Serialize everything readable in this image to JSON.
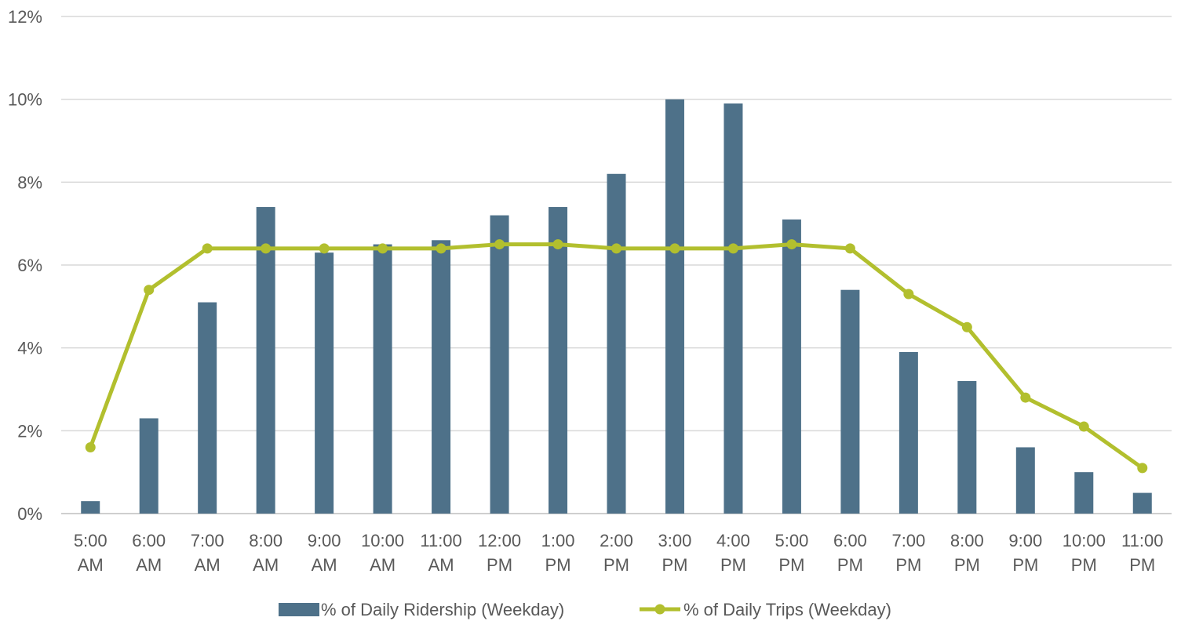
{
  "chart_data": {
    "type": "bar",
    "categories": [
      [
        "5:00",
        "AM"
      ],
      [
        "6:00",
        "AM"
      ],
      [
        "7:00",
        "AM"
      ],
      [
        "8:00",
        "AM"
      ],
      [
        "9:00",
        "AM"
      ],
      [
        "10:00",
        "AM"
      ],
      [
        "11:00",
        "AM"
      ],
      [
        "12:00",
        "PM"
      ],
      [
        "1:00",
        "PM"
      ],
      [
        "2:00",
        "PM"
      ],
      [
        "3:00",
        "PM"
      ],
      [
        "4:00",
        "PM"
      ],
      [
        "5:00",
        "PM"
      ],
      [
        "6:00",
        "PM"
      ],
      [
        "7:00",
        "PM"
      ],
      [
        "8:00",
        "PM"
      ],
      [
        "9:00",
        "PM"
      ],
      [
        "10:00",
        "PM"
      ],
      [
        "11:00",
        "PM"
      ]
    ],
    "series": [
      {
        "name": "% of Daily Ridership (Weekday)",
        "type": "bar",
        "color": "#4e7189",
        "values": [
          0.3,
          2.3,
          5.1,
          7.4,
          6.3,
          6.5,
          6.6,
          7.2,
          7.4,
          8.2,
          10.0,
          9.9,
          7.1,
          5.4,
          3.9,
          3.2,
          1.6,
          1.0,
          0.5
        ]
      },
      {
        "name": "% of Daily Trips (Weekday)",
        "type": "line",
        "color": "#b2bf2e",
        "values": [
          1.6,
          5.4,
          6.4,
          6.4,
          6.4,
          6.4,
          6.4,
          6.5,
          6.5,
          6.4,
          6.4,
          6.4,
          6.5,
          6.4,
          5.3,
          4.5,
          2.8,
          2.1,
          1.1
        ]
      }
    ],
    "y_ticks": [
      "0%",
      "2%",
      "4%",
      "6%",
      "8%",
      "10%",
      "12%"
    ],
    "ylim": [
      0,
      12
    ],
    "grid": true,
    "legend_position": "bottom"
  }
}
